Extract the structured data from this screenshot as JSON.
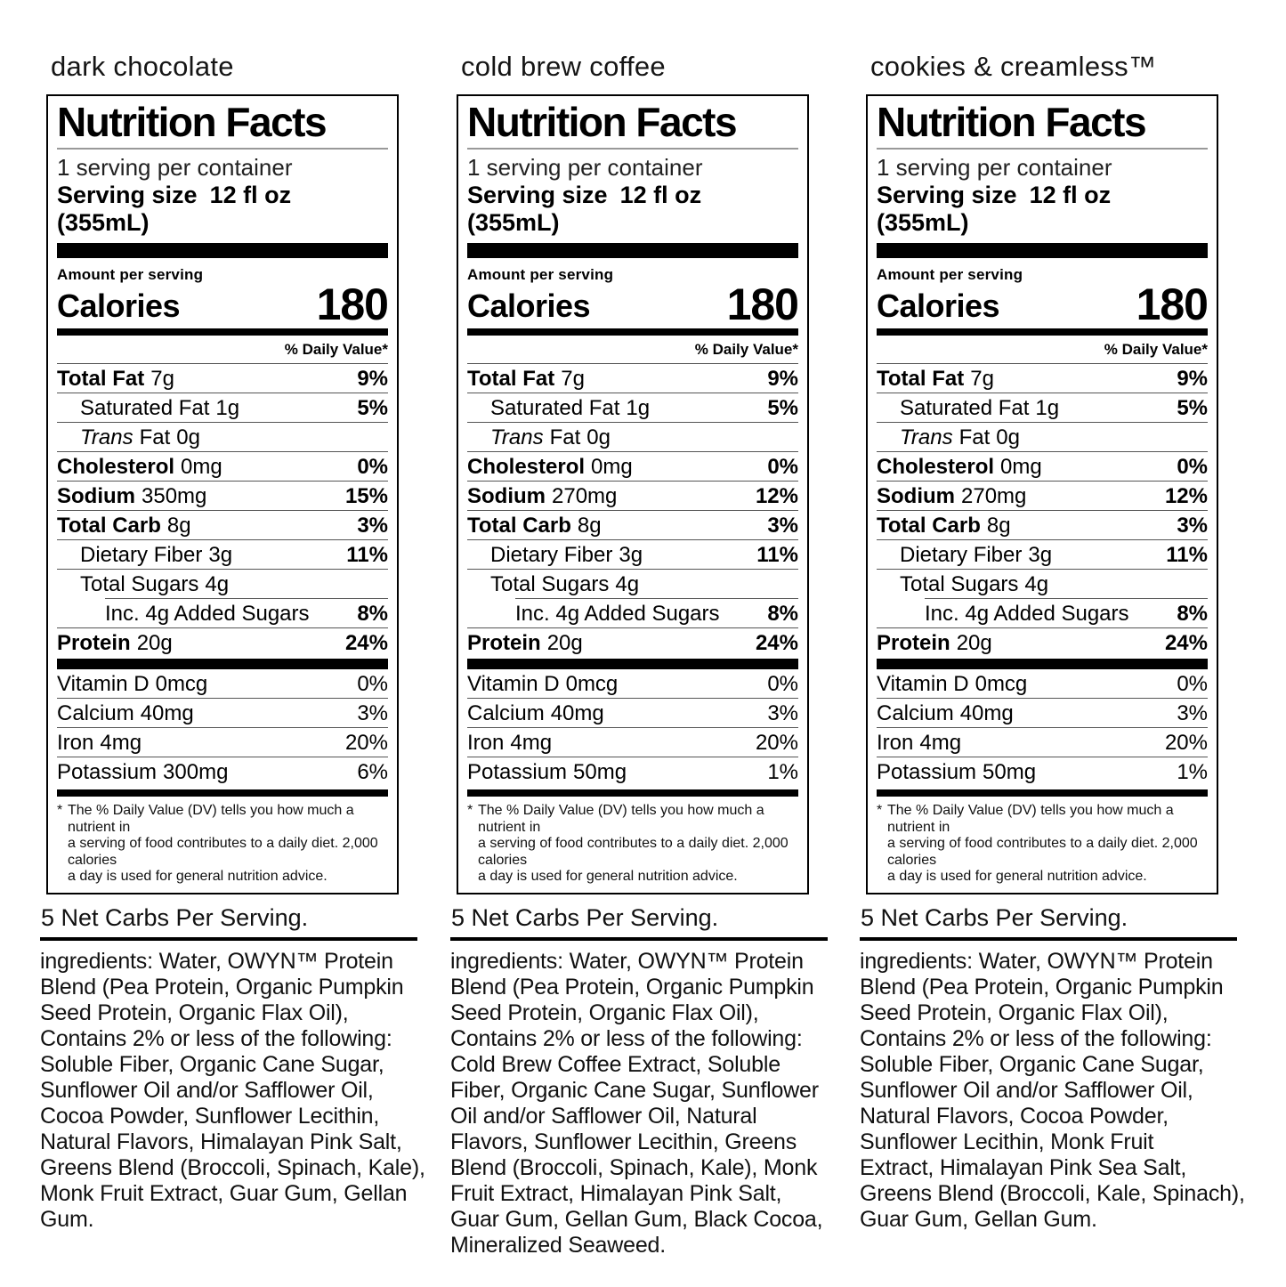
{
  "panels": [
    {
      "flavor": "dark chocolate",
      "label": {
        "title": "Nutrition Facts",
        "servings": "1 serving per container",
        "serving_size_label": "Serving size",
        "serving_size_value": "12 fl oz (355mL)",
        "amount_per_serving": "Amount per serving",
        "calories_label": "Calories",
        "calories_value": "180",
        "daily_value_header": "% Daily Value*",
        "nutrients": [
          {
            "name": "Total Fat",
            "amount": "7g",
            "dv": "9%"
          },
          {
            "name": "Saturated Fat",
            "amount": "1g",
            "dv": "5%"
          },
          {
            "name_italic": "Trans",
            "name": "Fat",
            "amount": "0g",
            "dv": ""
          },
          {
            "name": "Cholesterol",
            "amount": "0mg",
            "dv": "0%"
          },
          {
            "name": "Sodium",
            "amount": "350mg",
            "dv": "15%"
          },
          {
            "name": "Total Carb",
            "amount": "8g",
            "dv": "3%"
          },
          {
            "name": "Dietary Fiber",
            "amount": "3g",
            "dv": "11%"
          },
          {
            "name": "Total Sugars",
            "amount": "4g",
            "dv": ""
          },
          {
            "name": "Inc. 4g Added Sugars",
            "amount": "",
            "dv": "8%"
          },
          {
            "name": "Protein",
            "amount": "20g",
            "dv": "24%"
          }
        ],
        "vitamins": [
          {
            "name": "Vitamin D",
            "amount": "0mcg",
            "dv": "0%"
          },
          {
            "name": "Calcium",
            "amount": "40mg",
            "dv": "3%"
          },
          {
            "name": "Iron",
            "amount": "4mg",
            "dv": "20%"
          },
          {
            "name": "Potassium",
            "amount": "300mg",
            "dv": "6%"
          }
        ],
        "footnote_mark": "*",
        "footnote": "The % Daily Value (DV) tells you how much a nutrient in\na serving of food contributes to a daily diet. 2,000 calories\na day is used for general nutrition advice."
      },
      "net_carbs": "5 Net Carbs Per Serving.",
      "ingredients": "ingredients: Water, OWYN™ Protein\nBlend (Pea Protein, Organic Pumpkin\nSeed Protein, Organic Flax Oil),\nContains 2% or less of the following:\nSoluble Fiber, Organic Cane Sugar,\nSunflower Oil and/or Safflower Oil,\nCocoa Powder, Sunflower Lecithin,\nNatural Flavors, Himalayan Pink Salt,\nGreens Blend (Broccoli, Spinach, Kale),\nMonk Fruit Extract, Guar Gum, Gellan\nGum."
    },
    {
      "flavor": "cold brew coffee",
      "label": {
        "title": "Nutrition Facts",
        "servings": "1 serving per container",
        "serving_size_label": "Serving size",
        "serving_size_value": "12 fl oz (355mL)",
        "amount_per_serving": "Amount per serving",
        "calories_label": "Calories",
        "calories_value": "180",
        "daily_value_header": "% Daily Value*",
        "nutrients": [
          {
            "name": "Total Fat",
            "amount": "7g",
            "dv": "9%"
          },
          {
            "name": "Saturated Fat",
            "amount": "1g",
            "dv": "5%"
          },
          {
            "name_italic": "Trans",
            "name": "Fat",
            "amount": "0g",
            "dv": ""
          },
          {
            "name": "Cholesterol",
            "amount": "0mg",
            "dv": "0%"
          },
          {
            "name": "Sodium",
            "amount": "270mg",
            "dv": "12%"
          },
          {
            "name": "Total Carb",
            "amount": "8g",
            "dv": "3%"
          },
          {
            "name": "Dietary Fiber",
            "amount": "3g",
            "dv": "11%"
          },
          {
            "name": "Total Sugars",
            "amount": "4g",
            "dv": ""
          },
          {
            "name": "Inc. 4g Added Sugars",
            "amount": "",
            "dv": "8%"
          },
          {
            "name": "Protein",
            "amount": "20g",
            "dv": "24%"
          }
        ],
        "vitamins": [
          {
            "name": "Vitamin D",
            "amount": "0mcg",
            "dv": "0%"
          },
          {
            "name": "Calcium",
            "amount": "40mg",
            "dv": "3%"
          },
          {
            "name": "Iron",
            "amount": "4mg",
            "dv": "20%"
          },
          {
            "name": "Potassium",
            "amount": "50mg",
            "dv": "1%"
          }
        ],
        "footnote_mark": "*",
        "footnote": "The % Daily Value (DV) tells you how much a nutrient in\na serving of food contributes to a daily diet. 2,000 calories\na day is used for general nutrition advice."
      },
      "net_carbs": "5 Net Carbs Per Serving.",
      "ingredients": "ingredients: Water, OWYN™ Protein\nBlend (Pea Protein, Organic Pumpkin\nSeed Protein, Organic Flax Oil),\nContains 2% or less of the following:\nCold Brew Coffee Extract, Soluble\nFiber, Organic Cane Sugar, Sunflower\nOil and/or Safflower Oil, Natural\nFlavors, Sunflower Lecithin, Greens\nBlend (Broccoli, Spinach, Kale), Monk\nFruit Extract, Himalayan Pink Salt,\nGuar Gum, Gellan Gum, Black Cocoa,\nMineralized Seaweed."
    },
    {
      "flavor": "cookies & creamless™",
      "label": {
        "title": "Nutrition Facts",
        "servings": "1 serving per container",
        "serving_size_label": "Serving size",
        "serving_size_value": "12 fl oz (355mL)",
        "amount_per_serving": "Amount per serving",
        "calories_label": "Calories",
        "calories_value": "180",
        "daily_value_header": "% Daily Value*",
        "nutrients": [
          {
            "name": "Total Fat",
            "amount": "7g",
            "dv": "9%"
          },
          {
            "name": "Saturated Fat",
            "amount": "1g",
            "dv": "5%"
          },
          {
            "name_italic": "Trans",
            "name": "Fat",
            "amount": "0g",
            "dv": ""
          },
          {
            "name": "Cholesterol",
            "amount": "0mg",
            "dv": "0%"
          },
          {
            "name": "Sodium",
            "amount": "270mg",
            "dv": "12%"
          },
          {
            "name": "Total Carb",
            "amount": "8g",
            "dv": "3%"
          },
          {
            "name": "Dietary Fiber",
            "amount": "3g",
            "dv": "11%"
          },
          {
            "name": "Total Sugars",
            "amount": "4g",
            "dv": ""
          },
          {
            "name": "Inc. 4g Added Sugars",
            "amount": "",
            "dv": "8%"
          },
          {
            "name": "Protein",
            "amount": "20g",
            "dv": "24%"
          }
        ],
        "vitamins": [
          {
            "name": "Vitamin D",
            "amount": "0mcg",
            "dv": "0%"
          },
          {
            "name": "Calcium",
            "amount": "40mg",
            "dv": "3%"
          },
          {
            "name": "Iron",
            "amount": "4mg",
            "dv": "20%"
          },
          {
            "name": "Potassium",
            "amount": "50mg",
            "dv": "1%"
          }
        ],
        "footnote_mark": "*",
        "footnote": "The % Daily Value (DV) tells you how much a nutrient in\na serving of food contributes to a daily diet. 2,000 calories\na day is used for general nutrition advice."
      },
      "net_carbs": "5 Net Carbs Per Serving.",
      "ingredients": "ingredients: Water, OWYN™ Protein\nBlend (Pea Protein, Organic Pumpkin\nSeed Protein, Organic Flax Oil),\nContains 2% or less of the following:\nSoluble Fiber, Organic Cane Sugar,\nSunflower Oil and/or Safflower Oil,\nNatural Flavors, Cocoa Powder,\nSunflower Lecithin, Monk Fruit\nExtract, Himalayan Pink Sea Salt,\nGreens Blend (Broccoli, Kale, Spinach),\nGuar Gum, Gellan Gum."
    }
  ]
}
